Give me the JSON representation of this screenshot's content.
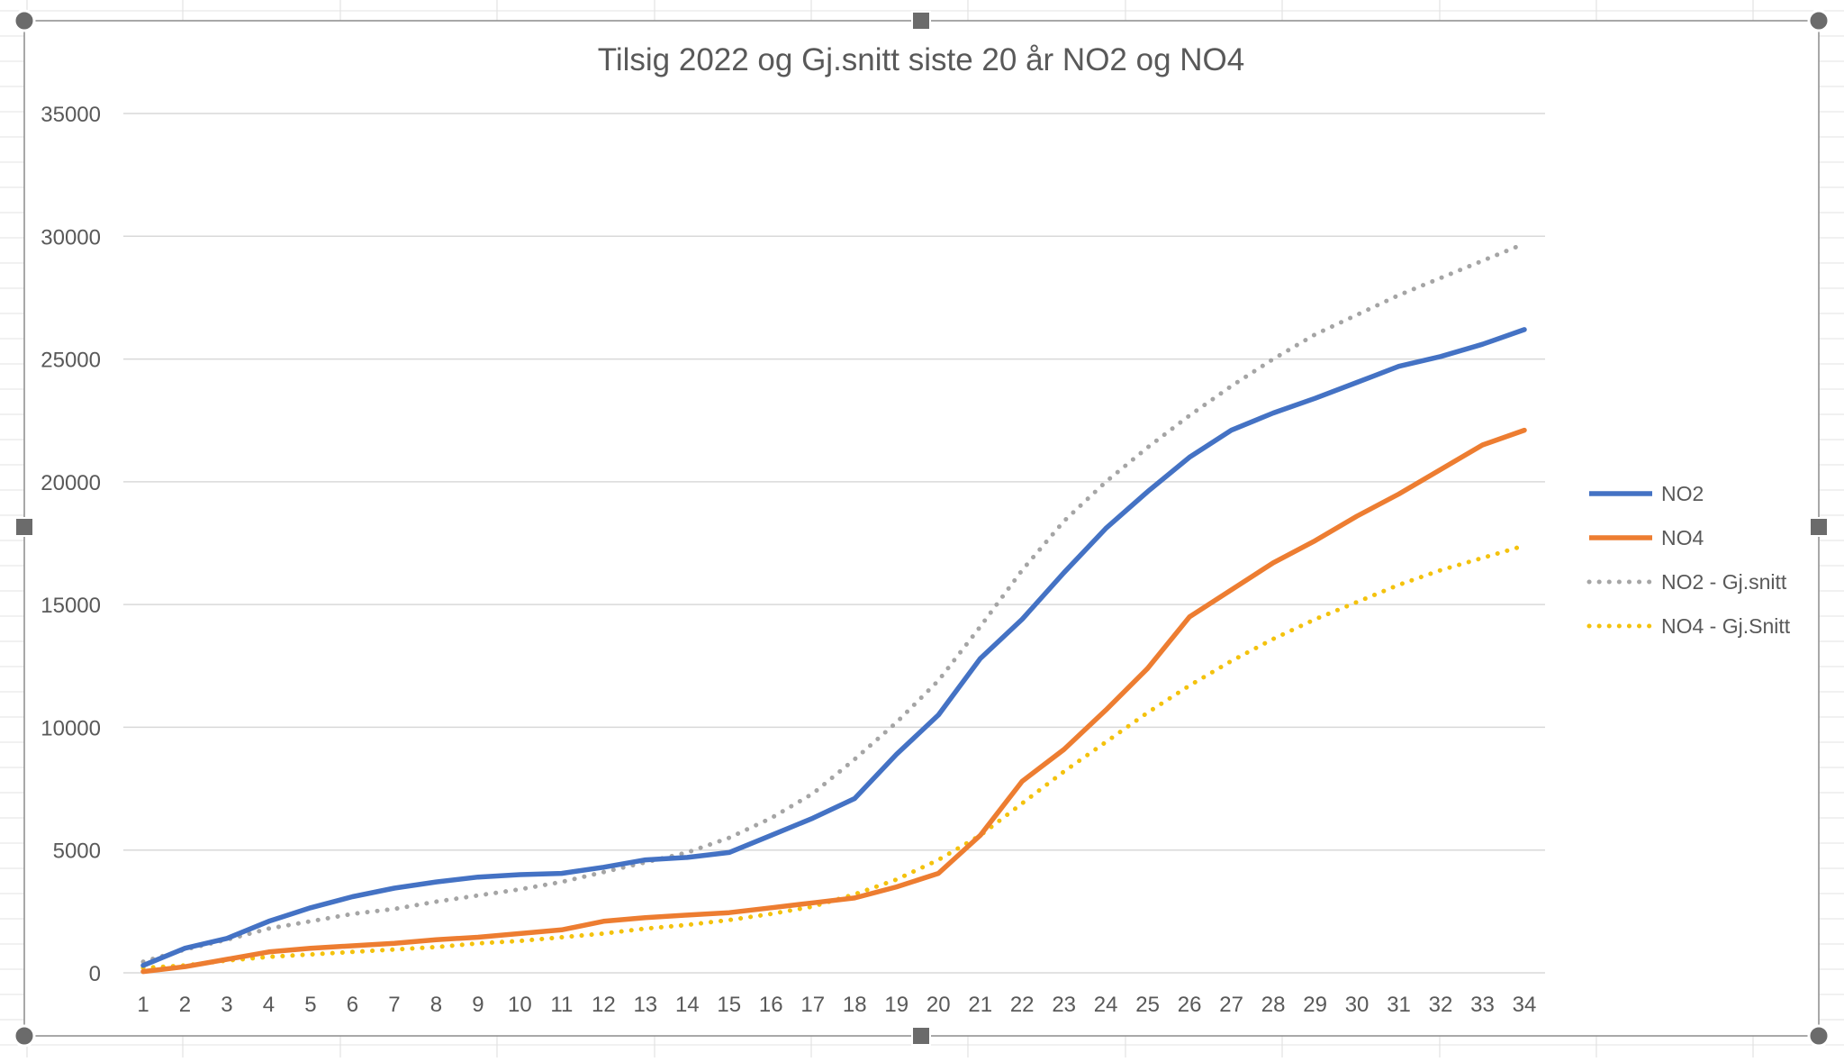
{
  "chart_data": {
    "type": "line",
    "title": "Tilsig 2022 og Gj.snitt siste 20 år NO2 og NO4",
    "xlabel": "",
    "ylabel": "",
    "x": [
      1,
      2,
      3,
      4,
      5,
      6,
      7,
      8,
      9,
      10,
      11,
      12,
      13,
      14,
      15,
      16,
      17,
      18,
      19,
      20,
      21,
      22,
      23,
      24,
      25,
      26,
      27,
      28,
      29,
      30,
      31,
      32,
      33,
      34
    ],
    "ylim": [
      0,
      35000
    ],
    "yticks": [
      0,
      5000,
      10000,
      15000,
      20000,
      25000,
      30000,
      35000
    ],
    "grid": true,
    "legend_position": "right",
    "series": [
      {
        "name": "NO2",
        "style": "solid",
        "color": "#4472C4",
        "values": [
          300,
          1000,
          1400,
          2100,
          2650,
          3100,
          3450,
          3700,
          3900,
          4000,
          4050,
          4300,
          4600,
          4700,
          4900,
          5600,
          6300,
          7100,
          8900,
          10500,
          12800,
          14400,
          16300,
          18100,
          19600,
          21000,
          22100,
          22800,
          23400,
          24050,
          24700,
          25100,
          25600,
          26200
        ]
      },
      {
        "name": "NO4",
        "style": "solid",
        "color": "#ED7D31",
        "values": [
          50,
          250,
          550,
          850,
          1000,
          1100,
          1200,
          1350,
          1450,
          1600,
          1750,
          2100,
          2250,
          2350,
          2450,
          2650,
          2850,
          3050,
          3500,
          4050,
          5600,
          7800,
          9100,
          10700,
          12400,
          14500,
          15600,
          16700,
          17600,
          18600,
          19500,
          20500,
          21500,
          22100
        ]
      },
      {
        "name": "NO2 - Gj.snitt",
        "style": "dotted",
        "color": "#A5A5A5",
        "values": [
          450,
          950,
          1350,
          1800,
          2100,
          2400,
          2600,
          2900,
          3150,
          3400,
          3700,
          4100,
          4500,
          4900,
          5500,
          6300,
          7300,
          8700,
          10200,
          11900,
          14100,
          16400,
          18400,
          20000,
          21400,
          22700,
          23900,
          25000,
          26000,
          26800,
          27600,
          28300,
          29000,
          29700
        ]
      },
      {
        "name": "NO4 - Gj.Snitt",
        "style": "dotted",
        "color": "#F4C20D",
        "values": [
          200,
          300,
          500,
          650,
          750,
          850,
          950,
          1050,
          1200,
          1300,
          1450,
          1600,
          1800,
          1950,
          2150,
          2400,
          2700,
          3200,
          3800,
          4600,
          5600,
          6900,
          8200,
          9400,
          10600,
          11700,
          12700,
          13600,
          14400,
          15100,
          15800,
          16400,
          16900,
          17400
        ]
      }
    ]
  }
}
